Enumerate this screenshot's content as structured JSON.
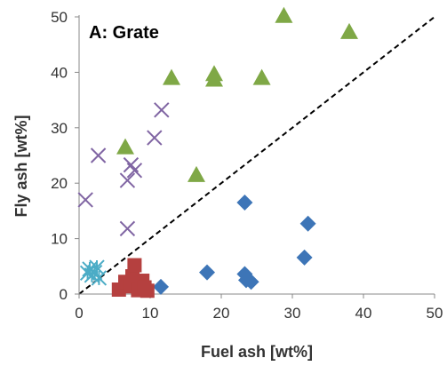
{
  "chart_data": {
    "type": "scatter",
    "title": "A: Grate",
    "xlabel": "Fuel ash [wt%]",
    "ylabel": "Fly ash [wt%]",
    "xlim": [
      0,
      50
    ],
    "ylim": [
      0,
      50
    ],
    "x_ticks": [
      "0",
      "10",
      "20",
      "30",
      "40",
      "50"
    ],
    "y_ticks": [
      "0",
      "10",
      "20",
      "30",
      "40",
      "50"
    ],
    "grid": false,
    "reference_line": {
      "style": "dashed",
      "x": [
        0,
        50
      ],
      "y": [
        0,
        50
      ],
      "color": "#000000"
    },
    "series": [
      {
        "marker": "diamond",
        "color": "#3d75b7",
        "points": [
          [
            11.5,
            1.3
          ],
          [
            18,
            3.9
          ],
          [
            23.3,
            16.5
          ],
          [
            23.3,
            3.6
          ],
          [
            23.5,
            2.5
          ],
          [
            24.2,
            2.2
          ],
          [
            31.7,
            6.6
          ],
          [
            32.2,
            12.7
          ]
        ]
      },
      {
        "marker": "square",
        "color": "#b5403f",
        "points": [
          [
            5.6,
            0.8
          ],
          [
            6.5,
            2.2
          ],
          [
            7.2,
            1.4
          ],
          [
            7.5,
            3.2
          ],
          [
            7.8,
            5.2
          ],
          [
            8.3,
            0.7
          ],
          [
            8.9,
            2.4
          ],
          [
            9.2,
            1.2
          ],
          [
            9.6,
            0.6
          ]
        ]
      },
      {
        "marker": "triangle",
        "color": "#7fa846",
        "points": [
          [
            6.5,
            26.5
          ],
          [
            13,
            39
          ],
          [
            16.5,
            21.5
          ],
          [
            19,
            39.7
          ],
          [
            19,
            38.7
          ],
          [
            25.7,
            39
          ],
          [
            28.8,
            50.2
          ],
          [
            38,
            47.3
          ]
        ]
      },
      {
        "marker": "x",
        "color": "#8065a3",
        "points": [
          [
            0.9,
            17
          ],
          [
            2.7,
            25
          ],
          [
            6.8,
            11.8
          ],
          [
            6.8,
            20.5
          ],
          [
            7.3,
            23.3
          ],
          [
            7.8,
            22.3
          ],
          [
            10.6,
            28.2
          ],
          [
            11.6,
            33.2
          ]
        ]
      },
      {
        "marker": "asterisk",
        "color": "#4bacc6",
        "points": [
          [
            1.2,
            3.8
          ],
          [
            1.5,
            4.5
          ],
          [
            1.8,
            3.4
          ],
          [
            2.2,
            3.9
          ],
          [
            2.8,
            2.9
          ],
          [
            2.5,
            4.8
          ]
        ]
      }
    ]
  }
}
